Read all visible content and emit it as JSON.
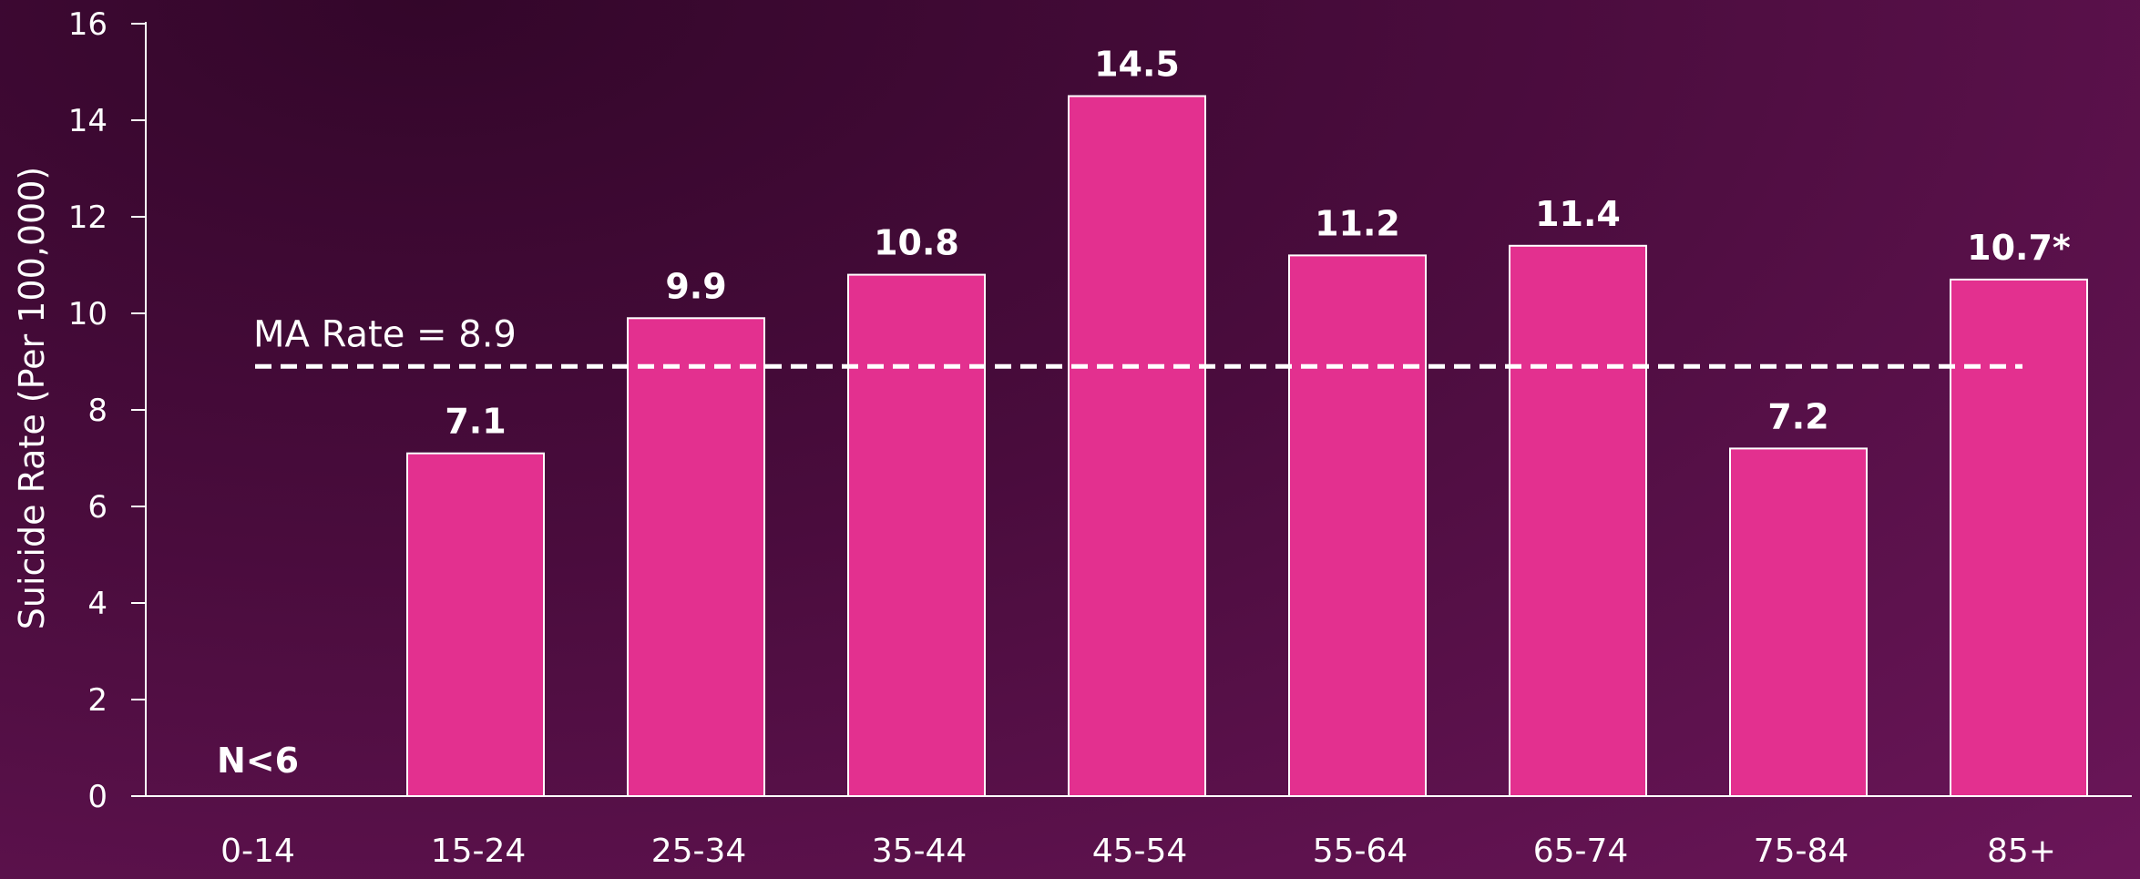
{
  "chart_data": {
    "type": "bar",
    "title": "",
    "xlabel": "",
    "ylabel": "Suicide Rate (Per 100,000)",
    "ylim": [
      0,
      16
    ],
    "yticks": [
      0,
      2,
      4,
      6,
      8,
      10,
      12,
      14,
      16
    ],
    "categories": [
      "0-14",
      "15-24",
      "25-34",
      "35-44",
      "45-54",
      "55-64",
      "65-74",
      "75-84",
      "85+"
    ],
    "values": [
      null,
      7.1,
      9.9,
      10.8,
      14.5,
      11.2,
      11.4,
      7.2,
      10.7
    ],
    "data_labels": [
      "N<6",
      "7.1",
      "9.9",
      "10.8",
      "14.5",
      "11.2",
      "11.4",
      "7.2",
      "10.7*"
    ],
    "reference_line": {
      "value": 8.9,
      "label": "MA Rate = 8.9",
      "style": "dashed"
    },
    "bar_color": "#e3308f",
    "grid": false,
    "legend": "none"
  }
}
